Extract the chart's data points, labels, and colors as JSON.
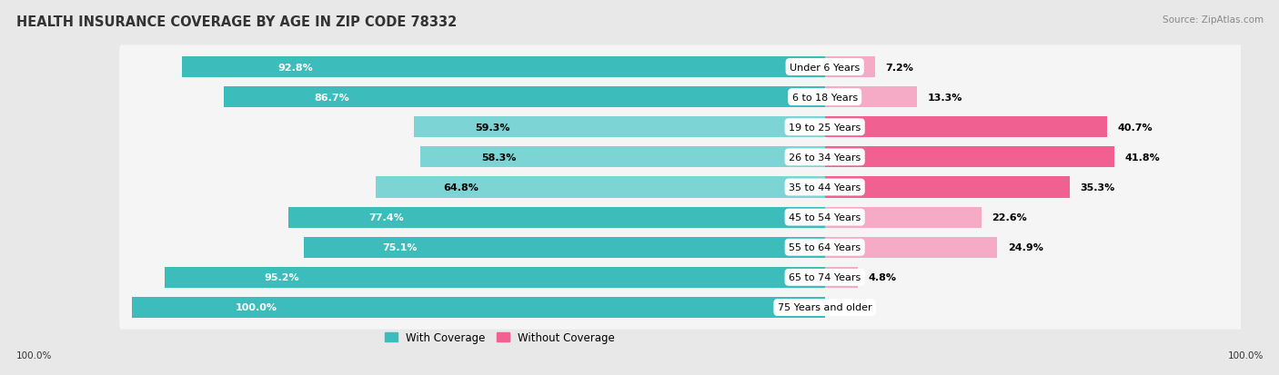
{
  "title": "HEALTH INSURANCE COVERAGE BY AGE IN ZIP CODE 78332",
  "source": "Source: ZipAtlas.com",
  "categories": [
    "Under 6 Years",
    "6 to 18 Years",
    "19 to 25 Years",
    "26 to 34 Years",
    "35 to 44 Years",
    "45 to 54 Years",
    "55 to 64 Years",
    "65 to 74 Years",
    "75 Years and older"
  ],
  "with_coverage": [
    92.8,
    86.7,
    59.3,
    58.3,
    64.8,
    77.4,
    75.1,
    95.2,
    100.0
  ],
  "without_coverage": [
    7.2,
    13.3,
    40.7,
    41.8,
    35.3,
    22.6,
    24.9,
    4.8,
    0.0
  ],
  "color_with_dark": "#3dbcbc",
  "color_with_light": "#7dd4d4",
  "color_without_dark": "#f06090",
  "color_without_light": "#f5aac5",
  "bg_color": "#e8e8e8",
  "bar_row_bg": "#f5f5f5",
  "title_fontsize": 10.5,
  "label_fontsize": 8.0,
  "bar_height": 0.7,
  "legend_fontsize": 8.5,
  "with_dark_threshold": 75.0,
  "without_dark_threshold": 25.0
}
